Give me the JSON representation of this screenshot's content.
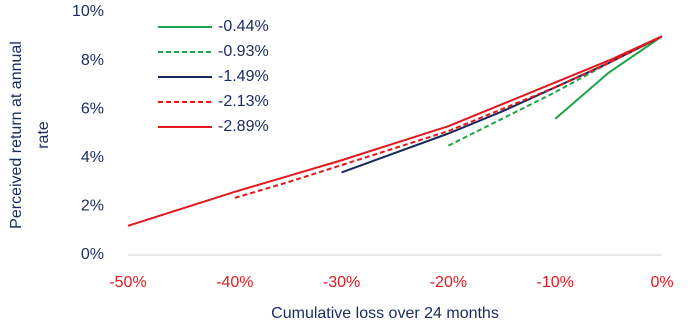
{
  "chart_data": {
    "type": "line",
    "xlabel": "Cumulative loss over 24 months",
    "ylabel": "Perceived return at annual rate",
    "x": [
      -50,
      -45,
      -40,
      -35,
      -30,
      -25,
      -20,
      -15,
      -10,
      -5,
      0
    ],
    "series": [
      {
        "name": "-0.44%",
        "color": "#1fa34a",
        "dash": false,
        "values": [
          null,
          null,
          null,
          null,
          null,
          null,
          null,
          null,
          5.6,
          7.5,
          9.0
        ]
      },
      {
        "name": "-0.93%",
        "color": "#1fa34a",
        "dash": true,
        "values": [
          null,
          null,
          null,
          null,
          null,
          null,
          4.5,
          5.6,
          6.7,
          7.9,
          9.0
        ]
      },
      {
        "name": "-1.49%",
        "color": "#14285a",
        "dash": false,
        "values": [
          null,
          null,
          null,
          null,
          3.4,
          4.2,
          5.0,
          5.9,
          6.9,
          7.9,
          9.0
        ]
      },
      {
        "name": "-2.13%",
        "color": "#e3181f",
        "dash": true,
        "values": [
          null,
          null,
          2.35,
          3.0,
          3.7,
          4.4,
          5.1,
          6.0,
          6.9,
          7.9,
          9.0
        ]
      },
      {
        "name": "-2.89%",
        "color": "#e3181f",
        "dash": false,
        "values": [
          1.2,
          1.9,
          2.6,
          3.25,
          3.9,
          4.6,
          5.3,
          6.2,
          7.1,
          8.0,
          9.0
        ]
      }
    ],
    "xlim": [
      -50,
      0
    ],
    "xticks": [
      {
        "value": -50,
        "label": "-50%"
      },
      {
        "value": -40,
        "label": "-40%"
      },
      {
        "value": -30,
        "label": "-30%"
      },
      {
        "value": -20,
        "label": "-20%"
      },
      {
        "value": -10,
        "label": "-10%"
      },
      {
        "value": 0,
        "label": "0%"
      }
    ],
    "ylim": [
      0,
      10
    ],
    "yticks": [
      {
        "value": 0,
        "label": "0%"
      },
      {
        "value": 2,
        "label": "2%"
      },
      {
        "value": 4,
        "label": "4%"
      },
      {
        "value": 6,
        "label": "6%"
      },
      {
        "value": 8,
        "label": "8%"
      },
      {
        "value": 10,
        "label": "10%"
      }
    ],
    "grid": false,
    "legend": "top-left"
  }
}
